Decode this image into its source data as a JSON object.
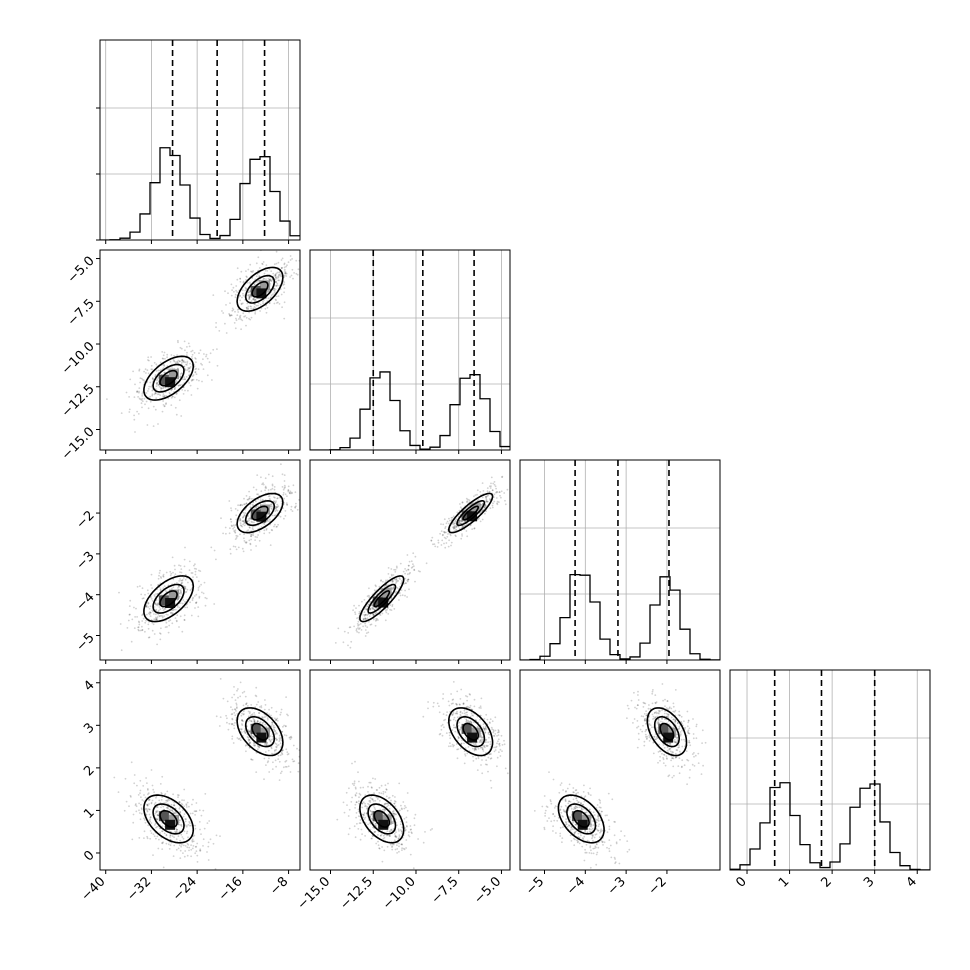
{
  "chart_data": {
    "type": "corner",
    "parameters": [
      {
        "range": [
          -41,
          -6
        ],
        "ticks": [
          -40,
          -32,
          -24,
          -16,
          -8
        ],
        "tick_labels": [
          "−40",
          "−32",
          "−24",
          "−16",
          "−8"
        ],
        "modes": [
          -29,
          -13
        ],
        "mode_sd": [
          2.7,
          2.5
        ],
        "quantiles": [
          -28.3,
          -20.5,
          -12.2
        ],
        "hist_ymax": 1.1
      },
      {
        "range": [
          -16.2,
          -4.5
        ],
        "ticks": [
          -15.0,
          -12.5,
          -10.0,
          -7.5,
          -5.0
        ],
        "tick_labels": [
          "−15.0",
          "−12.5",
          "−10.0",
          "−7.5",
          "−5.0"
        ],
        "modes": [
          -12.0,
          -6.8
        ],
        "mode_sd": [
          0.8,
          0.8
        ],
        "quantiles": [
          -12.5,
          -9.6,
          -6.6
        ],
        "hist_ymax": 1.2
      },
      {
        "range": [
          -5.6,
          -0.7
        ],
        "ticks": [
          -5,
          -4,
          -3,
          -2
        ],
        "tick_labels": [
          "−5",
          "−4",
          "−3",
          "−2"
        ],
        "modes": [
          -4.1,
          -2.0
        ],
        "mode_sd": [
          0.35,
          0.3
        ],
        "quantiles": [
          -4.25,
          -3.2,
          -1.95
        ],
        "hist_ymax": 1.15
      },
      {
        "range": [
          -0.4,
          4.3
        ],
        "ticks": [
          0,
          1,
          2,
          3,
          4
        ],
        "tick_labels": [
          "0",
          "1",
          "2",
          "3",
          "4"
        ],
        "modes": [
          0.8,
          2.85
        ],
        "mode_sd": [
          0.35,
          0.35
        ],
        "quantiles": [
          0.65,
          1.75,
          3.0
        ],
        "hist_ymax": 1.1
      }
    ],
    "hist_bins": 20,
    "contour_levels": 3,
    "grid": true,
    "quantile_style": "dashed"
  }
}
